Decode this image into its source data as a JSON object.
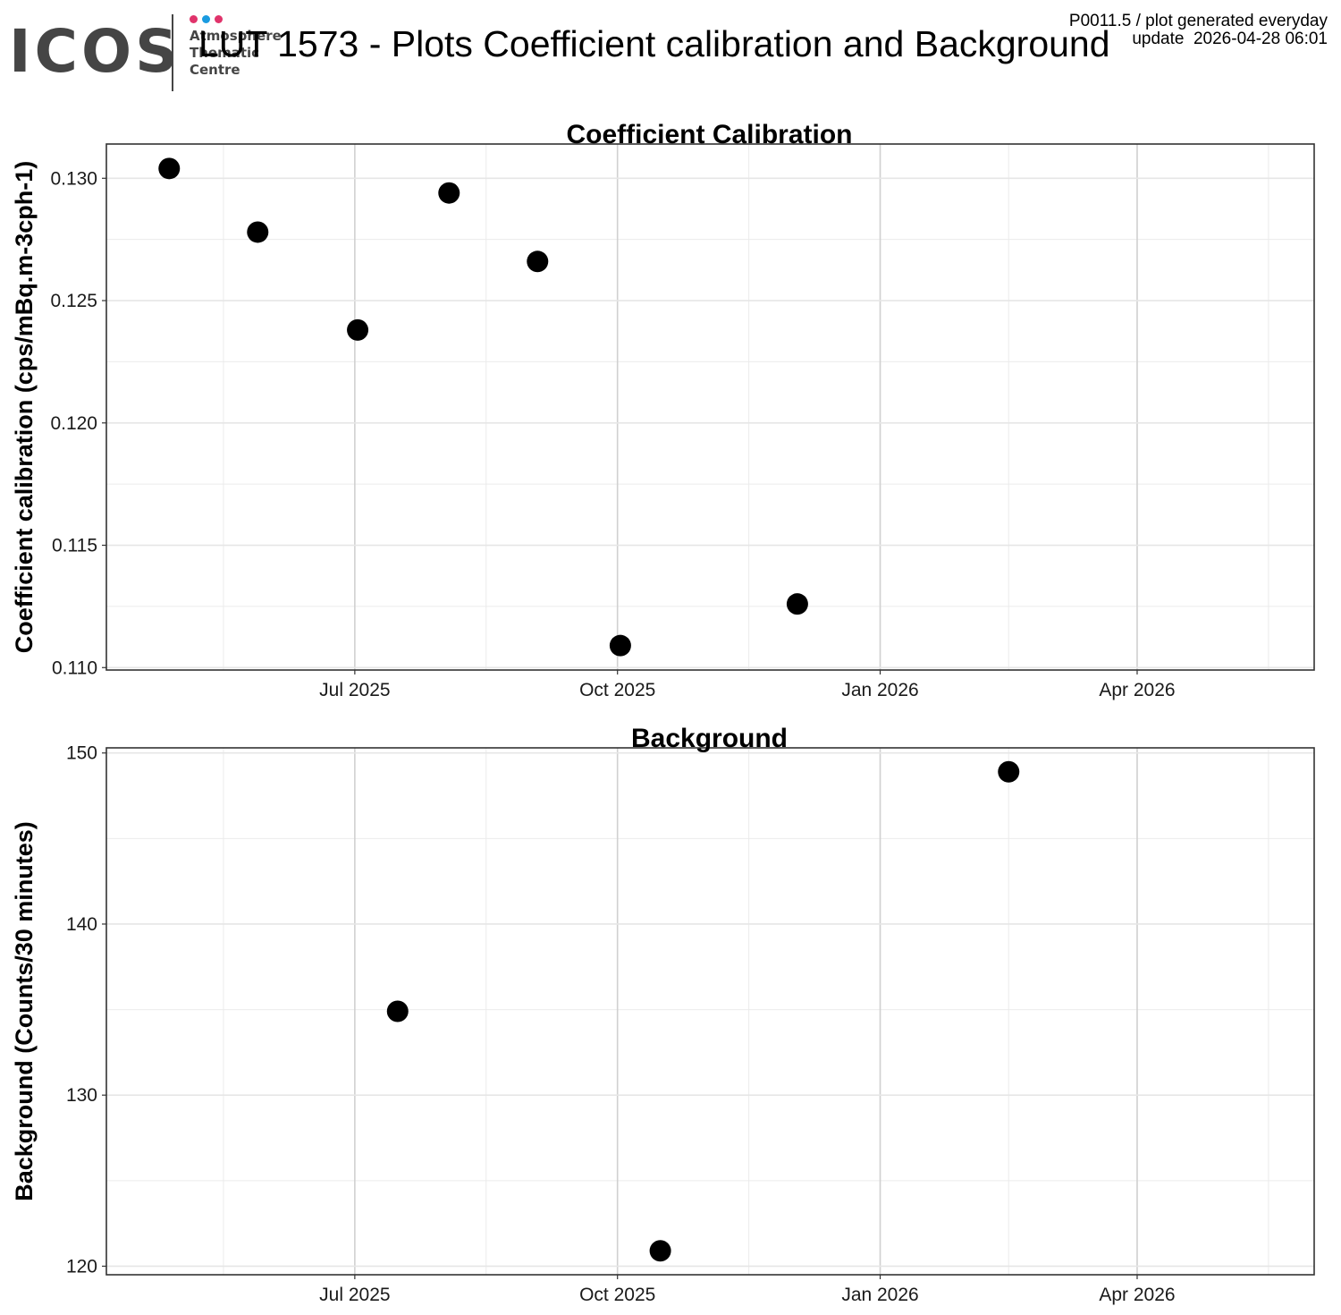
{
  "header": {
    "logo": {
      "wordmark": "ICOS",
      "tagline_lines": [
        "Atmosphere",
        "Thematic",
        "Centre"
      ],
      "dot_colors": [
        "#e0336b",
        "#1a9be0",
        "#e0336b"
      ]
    },
    "title": "LUT 1573 - Plots Coefficient calibration and Background",
    "meta_line1": "P0011.5 / plot generated everyday",
    "meta_line2": "update  2026-04-28 06:01"
  },
  "chart_data": [
    {
      "type": "scatter",
      "title": "Coefficient Calibration",
      "xlabel": "",
      "ylabel": "Coefficient calibration (cps/mBq.m-3cph-1)",
      "x_type": "date",
      "xlim": [
        "2025-04-05",
        "2026-06-02"
      ],
      "ylim": [
        0.1099,
        0.1314
      ],
      "x_ticks": [
        "2025-07-01",
        "2025-10-01",
        "2026-01-01",
        "2026-04-01"
      ],
      "x_tick_labels": [
        "Jul 2025",
        "Oct 2025",
        "Jan 2026",
        "Apr 2026"
      ],
      "y_ticks": [
        0.11,
        0.115,
        0.12,
        0.125,
        0.13
      ],
      "y_tick_labels": [
        "0.110",
        "0.115",
        "0.120",
        "0.125",
        "0.130"
      ],
      "grid": true,
      "points": [
        {
          "x": "2025-04-27",
          "y": 0.1304
        },
        {
          "x": "2025-05-28",
          "y": 0.1278
        },
        {
          "x": "2025-07-02",
          "y": 0.1238
        },
        {
          "x": "2025-08-03",
          "y": 0.1294
        },
        {
          "x": "2025-09-03",
          "y": 0.1266
        },
        {
          "x": "2025-10-02",
          "y": 0.1109
        },
        {
          "x": "2025-12-03",
          "y": 0.1126
        }
      ],
      "marker_color": "#000000"
    },
    {
      "type": "scatter",
      "title": "Background",
      "xlabel": "",
      "ylabel": "Background (Counts/30 minutes)",
      "x_type": "date",
      "xlim": [
        "2025-04-05",
        "2026-06-02"
      ],
      "ylim": [
        119.5,
        150.3
      ],
      "x_ticks": [
        "2025-07-01",
        "2025-10-01",
        "2026-01-01",
        "2026-04-01"
      ],
      "x_tick_labels": [
        "Jul 2025",
        "Oct 2025",
        "Jan 2026",
        "Apr 2026"
      ],
      "y_ticks": [
        120,
        130,
        140,
        150
      ],
      "y_tick_labels": [
        "120",
        "130",
        "140",
        "150"
      ],
      "grid": true,
      "points": [
        {
          "x": "2025-07-16",
          "y": 134.9
        },
        {
          "x": "2025-10-16",
          "y": 120.9
        },
        {
          "x": "2026-02-15",
          "y": 148.9
        }
      ],
      "marker_color": "#000000"
    }
  ]
}
